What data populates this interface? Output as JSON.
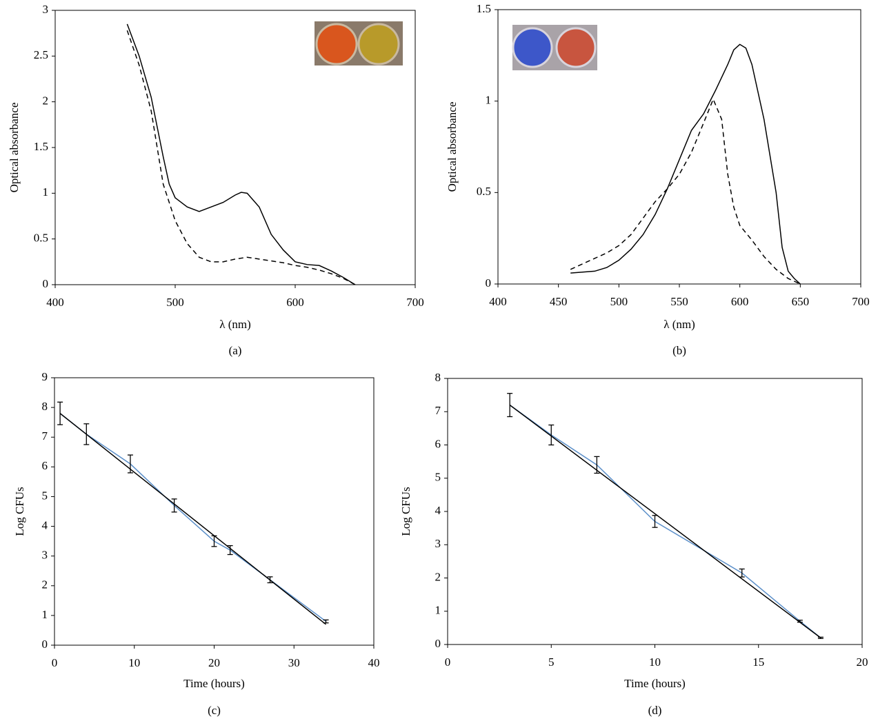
{
  "chart_data": [
    {
      "type": "line",
      "subtitle": "(a)",
      "xlabel": "λ (nm)",
      "ylabel": "Optical absorbance",
      "xlim": [
        400,
        700
      ],
      "xticks": [
        400,
        500,
        600,
        700
      ],
      "ylim": [
        0,
        3
      ],
      "yticks": [
        0,
        0.5,
        1,
        1.5,
        2,
        2.5,
        3
      ],
      "series": [
        {
          "color": "#000000",
          "dashed": false,
          "x": [
            460,
            470,
            480,
            490,
            495,
            500,
            510,
            520,
            530,
            540,
            550,
            555,
            560,
            570,
            580,
            590,
            600,
            610,
            620,
            630,
            640,
            650
          ],
          "values": [
            2.85,
            2.5,
            2.05,
            1.4,
            1.1,
            0.95,
            0.85,
            0.8,
            0.85,
            0.9,
            0.98,
            1.01,
            1.0,
            0.85,
            0.55,
            0.38,
            0.25,
            0.22,
            0.21,
            0.15,
            0.08,
            0
          ]
        },
        {
          "color": "#000000",
          "dashed": true,
          "x": [
            460,
            470,
            480,
            490,
            500,
            510,
            520,
            530,
            540,
            550,
            560,
            570,
            580,
            590,
            600,
            610,
            620,
            630,
            640,
            650
          ],
          "values": [
            2.78,
            2.4,
            1.9,
            1.1,
            0.7,
            0.45,
            0.3,
            0.25,
            0.25,
            0.28,
            0.3,
            0.28,
            0.26,
            0.24,
            0.21,
            0.19,
            0.16,
            0.12,
            0.07,
            0
          ]
        }
      ]
    },
    {
      "type": "line",
      "subtitle": "(b)",
      "xlabel": "λ (nm)",
      "ylabel": "Optical absorbance",
      "xlim": [
        400,
        700
      ],
      "xticks": [
        400,
        450,
        500,
        550,
        600,
        650,
        700
      ],
      "ylim": [
        0,
        1.5
      ],
      "yticks": [
        0,
        0.5,
        1,
        1.5
      ],
      "series": [
        {
          "color": "#000000",
          "dashed": false,
          "x": [
            460,
            480,
            490,
            500,
            510,
            520,
            530,
            540,
            550,
            560,
            570,
            580,
            590,
            595,
            600,
            605,
            610,
            620,
            630,
            635,
            640,
            645,
            650
          ],
          "values": [
            0.06,
            0.07,
            0.09,
            0.13,
            0.19,
            0.27,
            0.38,
            0.52,
            0.68,
            0.84,
            0.93,
            1.06,
            1.2,
            1.28,
            1.31,
            1.29,
            1.2,
            0.9,
            0.5,
            0.2,
            0.07,
            0.03,
            0
          ]
        },
        {
          "color": "#000000",
          "dashed": true,
          "x": [
            460,
            470,
            480,
            490,
            500,
            510,
            520,
            530,
            540,
            550,
            560,
            570,
            578,
            585,
            590,
            595,
            600,
            610,
            620,
            630,
            640,
            650
          ],
          "values": [
            0.08,
            0.11,
            0.14,
            0.17,
            0.21,
            0.27,
            0.36,
            0.45,
            0.52,
            0.6,
            0.72,
            0.88,
            1.01,
            0.9,
            0.6,
            0.42,
            0.32,
            0.24,
            0.15,
            0.08,
            0.03,
            0
          ]
        }
      ]
    },
    {
      "type": "line",
      "subtitle": "(c)",
      "xlabel": "Time (hours)",
      "ylabel": "Log CFUs",
      "xlim": [
        0,
        40
      ],
      "xticks": [
        0,
        10,
        20,
        30,
        40
      ],
      "ylim": [
        0,
        9
      ],
      "yticks": [
        0,
        1,
        2,
        3,
        4,
        5,
        6,
        7,
        8,
        9
      ],
      "series": [
        {
          "color": "#5b8fc9",
          "dashed": false,
          "x": [
            0.7,
            4,
            9.5,
            15,
            20,
            22,
            27,
            34
          ],
          "values": [
            7.8,
            7.1,
            6.1,
            4.7,
            3.5,
            3.2,
            2.2,
            0.8
          ],
          "errors": [
            0.38,
            0.35,
            0.3,
            0.22,
            0.18,
            0.15,
            0.1,
            0.05
          ]
        },
        {
          "color": "#000000",
          "dashed": false,
          "x": [
            0.7,
            34
          ],
          "values": [
            7.8,
            0.7
          ]
        }
      ]
    },
    {
      "type": "line",
      "subtitle": "(d)",
      "xlabel": "Time (hours)",
      "ylabel": "Log CFUs",
      "xlim": [
        0,
        20
      ],
      "xticks": [
        0,
        5,
        10,
        15,
        20
      ],
      "ylim": [
        0,
        8
      ],
      "yticks": [
        0,
        1,
        2,
        3,
        4,
        5,
        6,
        7,
        8
      ],
      "series": [
        {
          "color": "#5b8fc9",
          "dashed": false,
          "x": [
            3,
            5,
            7.2,
            10,
            14.2,
            17,
            18
          ],
          "values": [
            7.2,
            6.3,
            5.4,
            3.7,
            2.15,
            0.7,
            0.2
          ],
          "errors": [
            0.35,
            0.3,
            0.25,
            0.18,
            0.12,
            0.03,
            0.02
          ]
        },
        {
          "color": "#000000",
          "dashed": false,
          "x": [
            3,
            18
          ],
          "values": [
            7.2,
            0.2
          ]
        }
      ]
    }
  ]
}
